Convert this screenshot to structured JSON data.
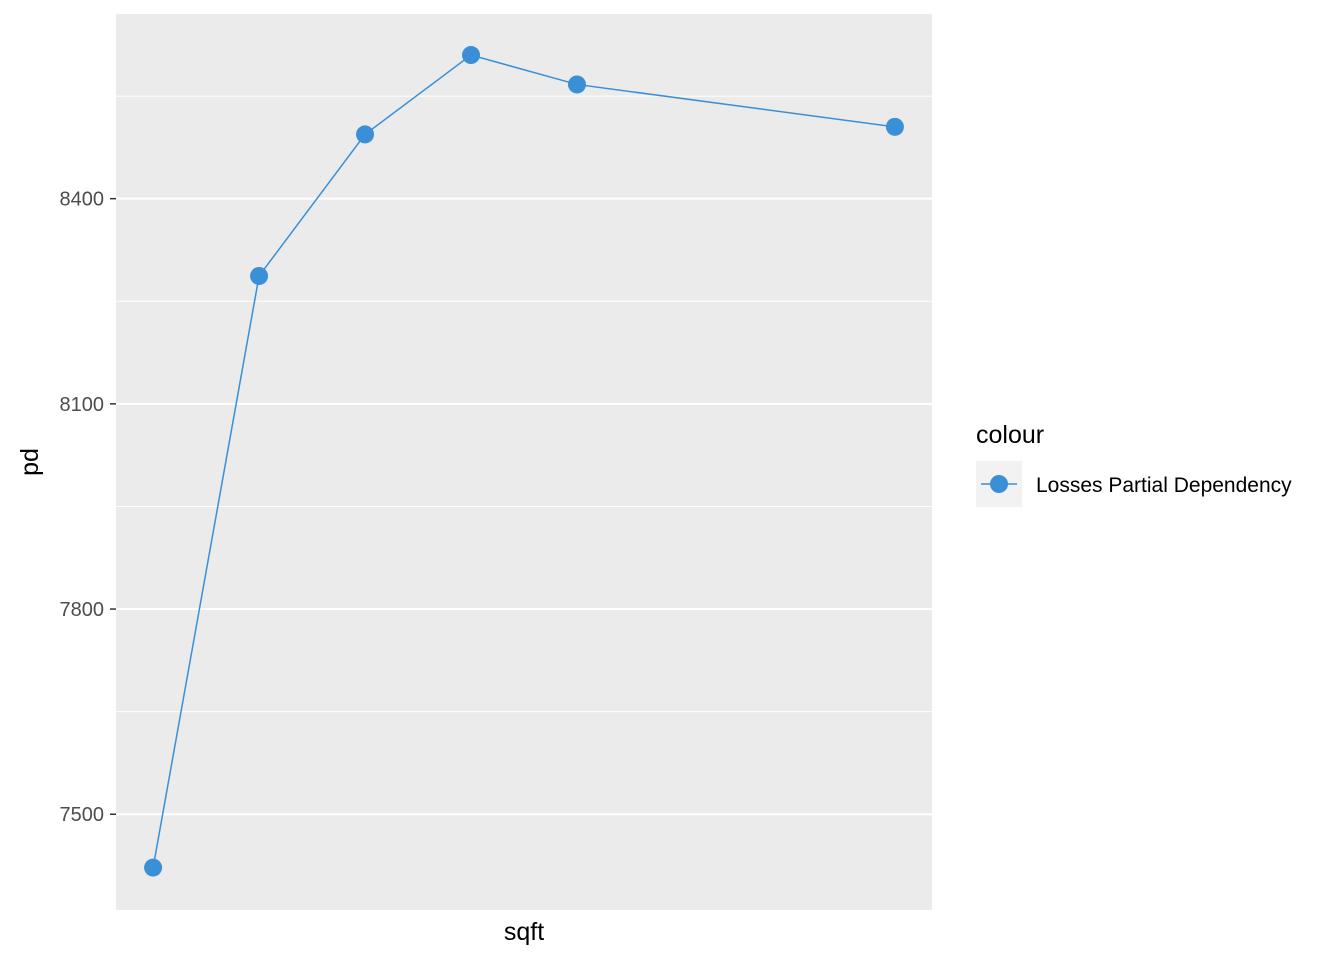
{
  "chart_data": {
    "type": "line",
    "xlabel": "sqft",
    "ylabel": "pd",
    "x_ticks_shown": false,
    "ylim": [
      7360,
      8670
    ],
    "y_ticks": [
      7500,
      7800,
      8100,
      8400
    ],
    "y_tick_labels": [
      "7500",
      "7800",
      "8100",
      "8400"
    ],
    "grid": true,
    "legend_position": "right",
    "legend": {
      "title": "colour"
    },
    "series": [
      {
        "name": "Losses Partial Dependency",
        "color": "#3a8fd6",
        "x": [
          1,
          2,
          3,
          4,
          5,
          8
        ],
        "values": [
          7422,
          8287,
          8494,
          8610,
          8567,
          8505
        ]
      }
    ]
  }
}
